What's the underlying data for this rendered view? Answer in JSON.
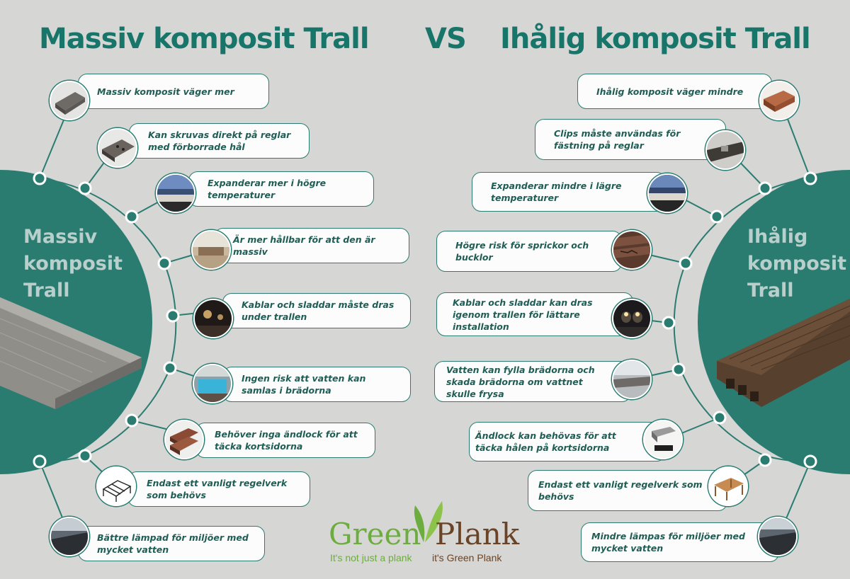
{
  "titles": {
    "left": "Massiv komposit Trall",
    "vs": "VS",
    "right": "Ihålig komposit Trall"
  },
  "circle_labels": {
    "left": "Massiv\nkomposit\nTrall",
    "right": "Ihålig\nkomposit\nTrall"
  },
  "colors": {
    "teal": "#2a7c71",
    "title": "#17756a",
    "background": "#d6d6d4"
  },
  "left_items": [
    {
      "text": "Massiv komposit väger mer",
      "icon": "solid-board-icon"
    },
    {
      "text": "Kan skruvas direkt på reglar med förborrade hål",
      "icon": "screwed-board-icon"
    },
    {
      "text": "Expanderar mer i högre temperaturer",
      "icon": "hot-deck-icon"
    },
    {
      "text": "Är mer hållbar för att den är massiv",
      "icon": "durable-deck-icon"
    },
    {
      "text": "Kablar och sladdar måste dras under trallen",
      "icon": "night-lights-icon"
    },
    {
      "text": "Ingen risk att vatten kan samlas i brädorna",
      "icon": "pool-icon"
    },
    {
      "text": "Behöver inga ändlock för att täcka kortsidorna",
      "icon": "board-ends-icon"
    },
    {
      "text": "Endast ett vanligt regelverk som behövs",
      "icon": "joist-frame-icon"
    },
    {
      "text": "Bättre lämpad för miljöer med mycket vatten",
      "icon": "water-deck-icon"
    }
  ],
  "right_items": [
    {
      "text": "Ihålig komposit väger mindre",
      "icon": "hollow-board-icon"
    },
    {
      "text": "Clips måste användas för fästning på reglar",
      "icon": "clip-icon"
    },
    {
      "text": "Expanderar mindre i lägre temperaturer",
      "icon": "cool-deck-icon"
    },
    {
      "text": "Högre risk för sprickor och bucklor",
      "icon": "cracked-board-icon"
    },
    {
      "text": "Kablar och sladdar kan dras igenom trallen för lättare installation",
      "icon": "wall-lights-icon"
    },
    {
      "text": "Vatten kan fylla brädorna och skada brädorna om vattnet skulle frysa",
      "icon": "frozen-board-icon"
    },
    {
      "text": "Ändlock kan behövas för att täcka hålen på kortsidorna",
      "icon": "end-cap-icon"
    },
    {
      "text": "Endast ett vanligt regelverk som behövs",
      "icon": "deck-frame-icon"
    },
    {
      "text": "Mindre lämpas för miljöer med mycket vatten",
      "icon": "wet-deck-icon"
    }
  ],
  "logo": {
    "word1": "Green",
    "word2": "Plank",
    "tagline1": "It's not just a plank",
    "tagline2": "it's Green Plank"
  }
}
